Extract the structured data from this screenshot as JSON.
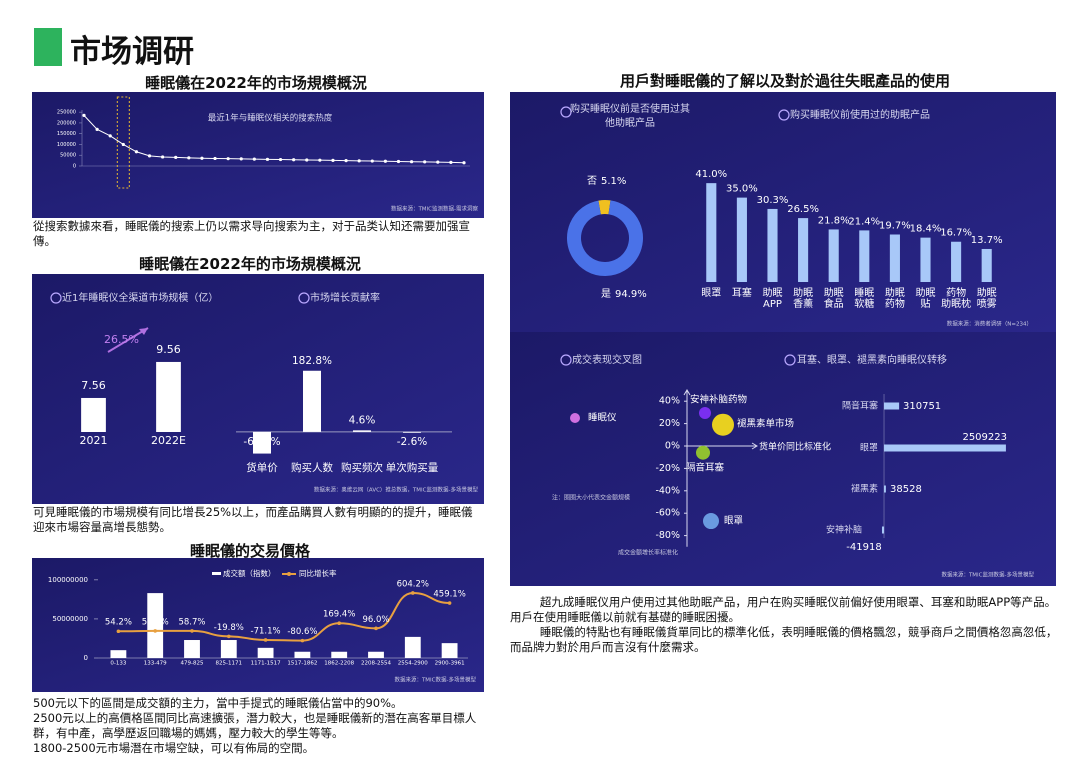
{
  "title": "市场调研",
  "section_titles": [
    "睡眠儀在2022年的市场規模概況",
    "睡眠儀在2022年的市场規模概況",
    "睡眠儀的交易價格",
    "用戶對睡眠儀的了解以及對於過往失眠產品的使用"
  ],
  "paragraphs": [
    "從搜索數據來看，睡眠儀的搜索上仍以需求导向搜索为主，对于品类认知还需要加强宣傳。",
    "可見睡眠儀的市場規模有同比增長25%以上，而產品購買人數有明顯的的提升，睡眠儀迎來市場容量高增長態勢。",
    "500元以下的區間是成交額的主力，當中手提式的睡眠儀佔當中的90%。",
    "2500元以上的高價格區間同比高速擴張，潛力較大，也是睡眠儀新的潛在高客單目標人群，有中產，高學歷返回職場的媽媽，壓力較大的學生等等。",
    "1800-2500元市場潛在市場空缺，可以有佈局的空間。",
    "超九成睡眠仪用户使用过其他助眠产品，用户在购买睡眠仪前偏好使用眼罩、耳塞和助眠APP等产品。用戶在使用睡眠儀以前就有基礎的睡眠困擾。",
    "睡眠儀的特點也有睡眠儀貨單同比的標準化低，表明睡眠儀的價格飄忽，競爭商戶之間價格忽高忽低，而品牌力對於用戶而言沒有什麼需求。"
  ],
  "chart_data": [
    {
      "type": "line",
      "title": "最近1年与睡眠仪相关的搜索热度",
      "values": [
        235000,
        170000,
        140000,
        100000,
        66000,
        47000,
        42000,
        40000,
        38000,
        36000,
        35000,
        34000,
        33000,
        32000,
        31000,
        30000,
        29000,
        28000,
        27000,
        26000,
        25000,
        24000,
        23000,
        22000,
        21000,
        20000,
        19000,
        18000,
        17000,
        15000
      ],
      "ylim": [
        0,
        260000
      ],
      "yticks": [
        0,
        50000,
        100000,
        150000,
        200000,
        250000
      ],
      "color": "#ffffff",
      "source": "数据来源：TMIC监测数据-需求洞察"
    },
    {
      "type": "bar",
      "title": "近1年睡眠仪全渠道市场规模（亿）",
      "categories": [
        "2021",
        "2022E"
      ],
      "values": [
        7.56,
        9.56
      ],
      "ylim": [
        5.67,
        13
      ],
      "color": "#ffffff",
      "annotation": "26.5%"
    },
    {
      "type": "bar",
      "title": "市场增长贡献率",
      "categories": [
        "货单价",
        "购买人数",
        "购买频次",
        "单次购买量"
      ],
      "values": [
        -64.8,
        182.8,
        4.6,
        -2.6
      ],
      "value_labels": [
        "-64.8%",
        "182.8%",
        "4.6%",
        "-2.6%"
      ],
      "ylim": [
        -90,
        200
      ],
      "color": "#ffffff",
      "source": "数据来源：奥维云网（AVC）推总数据，TMIC监测数据-多场景模型"
    },
    {
      "type": "combo",
      "categories": [
        "0-133",
        "133-479",
        "479-825",
        "825-1171",
        "1171-1517",
        "1517-1862",
        "1862-2208",
        "2208-2554",
        "2554-2900",
        "2900-3961"
      ],
      "series": [
        {
          "name": "成交额（指数）",
          "color": "#ffffff",
          "values": [
            10000000,
            83000000,
            23000000,
            23000000,
            13000000,
            8000000,
            8000000,
            8000000,
            27000000,
            19000000
          ]
        },
        {
          "name": "同比增长率",
          "color": "#e8a040",
          "axis": "y2",
          "values": [
            54.2,
            59.2,
            58.7,
            -19.8,
            -71.1,
            -80.6,
            169.4,
            96.0,
            604.2,
            459.1
          ],
          "value_labels": [
            "54.2%",
            "59.2%",
            "58.7%",
            "-19.8%",
            "-71.1%",
            "-80.6%",
            "169.4%",
            "96.0%",
            "604.2%",
            "459.1%"
          ]
        }
      ],
      "ylim": [
        0,
        110000000
      ],
      "yticks": [
        0,
        50000000,
        100000000
      ],
      "y2lim": [
        -330,
        905
      ],
      "source": "数据来源：TMIC数据-多场景模型"
    },
    {
      "type": "donut",
      "title": "购买睡眠仪前是否使用过其他助眠产品",
      "categories": [
        "否",
        "是"
      ],
      "values": [
        5.1,
        94.9
      ],
      "value_labels": [
        "5.1%",
        "94.9%"
      ],
      "colors": [
        "#f0c020",
        "#4a72e8"
      ]
    },
    {
      "type": "bar",
      "title": "购买睡眠仪前使用过的助眠产品",
      "categories": [
        "眼罩",
        "耳塞",
        "助眠APP",
        "助眠香薰",
        "助眠食品",
        "睡眠软糖",
        "助眠药物",
        "助眠贴",
        "药物助眠枕",
        "助眠喷雾"
      ],
      "values": [
        41.0,
        35.0,
        30.3,
        26.5,
        21.8,
        21.4,
        19.7,
        18.4,
        16.7,
        13.7
      ],
      "value_labels": [
        "41.0%",
        "35.0%",
        "30.3%",
        "26.5%",
        "21.8%",
        "21.4%",
        "19.7%",
        "18.4%",
        "16.7%",
        "13.7%"
      ],
      "ylim": [
        0,
        45
      ],
      "color": "#a8c8f8",
      "source": "数据来源：消费者调研（N=234）"
    },
    {
      "type": "scatter",
      "title": "成交表现交叉图",
      "xlabel": "货单价同比标准化",
      "ylabel": "成交金额增长率标准化",
      "note": "注：圈圈大小代表交金额规模",
      "point_labels": [
        "睡眠仪",
        "安神补脑药物",
        "褪黑素单市场",
        "隔音耳塞",
        "眼罩"
      ],
      "x": [
        -2.8,
        0.45,
        0.9,
        0.4,
        0.6
      ],
      "values": [
        25,
        29.5,
        19,
        -6,
        -67
      ],
      "sizes": [
        5,
        6,
        11,
        7,
        8
      ],
      "colors": [
        "#d070e0",
        "#7a2ff0",
        "#e8d020",
        "#90c030",
        "#6a9ae0"
      ],
      "xlim": [
        -3.2,
        1.8
      ],
      "ylim": [
        -90,
        50
      ],
      "yticks": [
        {
          "value": 40,
          "label": "40%"
        },
        {
          "value": 20,
          "label": "20%"
        },
        {
          "value": 0,
          "label": "0%"
        },
        {
          "value": -20,
          "label": "-20%"
        },
        {
          "value": -40,
          "label": "-40%"
        },
        {
          "value": -60,
          "label": "-60%"
        },
        {
          "value": -80,
          "label": "-80%"
        }
      ]
    },
    {
      "type": "hbar",
      "title": "耳塞、眼罩、褪黑素向睡眠仪转移",
      "categories": [
        "隔音耳塞",
        "眼罩",
        "褪黑素",
        "安神补脑"
      ],
      "values": [
        310751,
        2509223,
        38528,
        -41918
      ],
      "xlim": [
        -60000,
        2550000
      ],
      "color": "#a8c8f8",
      "source": "数据来源：TMIC监测数据-多场景模型"
    }
  ]
}
